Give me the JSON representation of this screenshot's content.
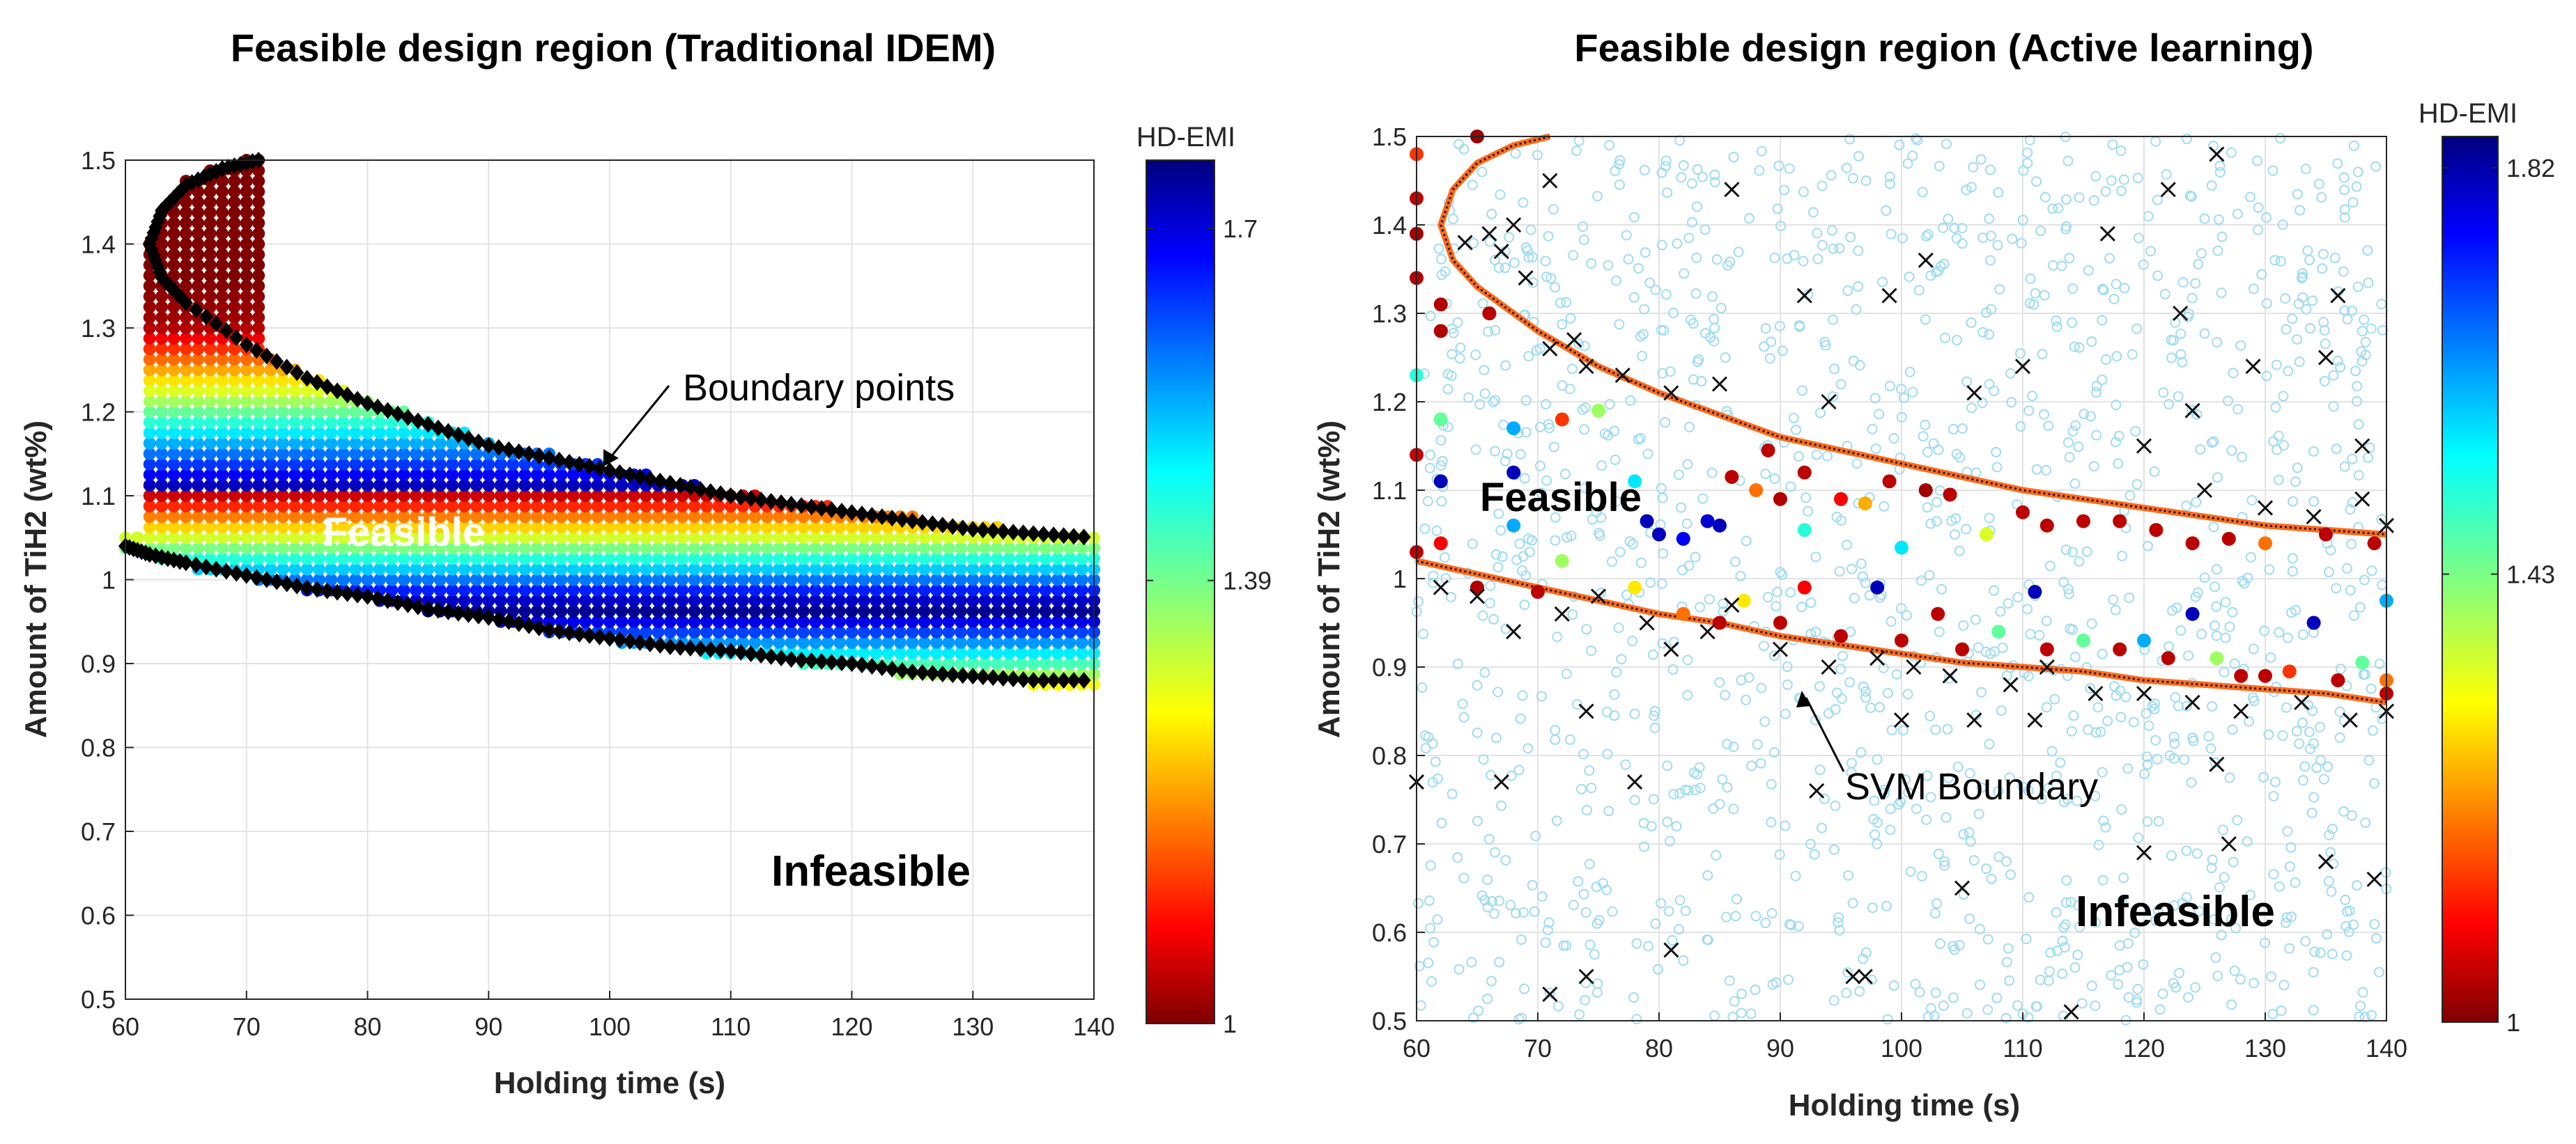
{
  "chart_data": [
    {
      "type": "scatter",
      "title": "Feasible design region (Traditional IDEM)",
      "xlabel": "Holding time (s)",
      "ylabel": "Amount of TiH2 (wt%)",
      "xlim": [
        60,
        140
      ],
      "ylim": [
        0.5,
        1.5
      ],
      "xticks": [
        "60",
        "70",
        "80",
        "90",
        "100",
        "110",
        "120",
        "130",
        "140"
      ],
      "yticks": [
        "0.5",
        "0.6",
        "0.7",
        "0.8",
        "0.9",
        "1",
        "1.1",
        "1.2",
        "1.3",
        "1.4",
        "1.5"
      ],
      "grid": true,
      "colorbar": {
        "label": "HD-EMI",
        "min": 1,
        "max": 1.76,
        "ticks": [
          "1",
          "1.39",
          "1.7"
        ],
        "tick_values": [
          1,
          1.39,
          1.7
        ],
        "colormap": "jet-reversed"
      },
      "upper_boundary": [
        [
          71,
          1.5
        ],
        [
          68,
          1.49
        ],
        [
          65,
          1.47
        ],
        [
          63,
          1.44
        ],
        [
          62,
          1.4
        ],
        [
          63,
          1.36
        ],
        [
          65,
          1.33
        ],
        [
          70,
          1.28
        ],
        [
          75,
          1.24
        ],
        [
          80,
          1.21
        ],
        [
          85,
          1.185
        ],
        [
          90,
          1.16
        ],
        [
          95,
          1.145
        ],
        [
          100,
          1.13
        ],
        [
          105,
          1.115
        ],
        [
          110,
          1.1
        ],
        [
          115,
          1.09
        ],
        [
          120,
          1.08
        ],
        [
          125,
          1.07
        ],
        [
          130,
          1.06
        ],
        [
          135,
          1.055
        ],
        [
          140,
          1.05
        ]
      ],
      "lower_boundary": [
        [
          60,
          1.04
        ],
        [
          62,
          1.03
        ],
        [
          65,
          1.02
        ],
        [
          70,
          1.005
        ],
        [
          75,
          0.99
        ],
        [
          80,
          0.98
        ],
        [
          85,
          0.965
        ],
        [
          90,
          0.955
        ],
        [
          95,
          0.94
        ],
        [
          100,
          0.93
        ],
        [
          105,
          0.92
        ],
        [
          110,
          0.915
        ],
        [
          115,
          0.905
        ],
        [
          120,
          0.9
        ],
        [
          125,
          0.89
        ],
        [
          130,
          0.885
        ],
        [
          135,
          0.88
        ],
        [
          140,
          0.88
        ]
      ],
      "series": [
        {
          "name": "Feasible points (colored by HD-EMI)"
        },
        {
          "name": "Boundary points"
        }
      ],
      "annotations": [
        {
          "text": "Boundary points",
          "x": 106,
          "y": 1.23,
          "arrow_to": [
            100,
            1.13
          ]
        },
        {
          "text": "Feasible",
          "x": 84,
          "y": 1.04
        },
        {
          "text": "Infeasible",
          "x": 110,
          "y": 0.66
        }
      ]
    },
    {
      "type": "scatter",
      "title": "Feasible design region (Active learning)",
      "xlabel": "Holding time (s)",
      "ylabel": "Amount of TiH2 (wt%)",
      "xlim": [
        60,
        140
      ],
      "ylim": [
        0.5,
        1.5
      ],
      "xticks": [
        "60",
        "70",
        "80",
        "90",
        "100",
        "110",
        "120",
        "130",
        "140"
      ],
      "yticks": [
        "0.5",
        "0.6",
        "0.7",
        "0.8",
        "0.9",
        "1",
        "1.1",
        "1.2",
        "1.3",
        "1.4",
        "1.5"
      ],
      "grid": true,
      "colorbar": {
        "label": "HD-EMI",
        "min": 1,
        "max": 1.85,
        "ticks": [
          "1",
          "1.43",
          "1.82"
        ],
        "tick_values": [
          1,
          1.43,
          1.82
        ],
        "colormap": "jet-reversed"
      },
      "svm_upper": [
        [
          71,
          1.5
        ],
        [
          68,
          1.49
        ],
        [
          65,
          1.47
        ],
        [
          63,
          1.44
        ],
        [
          62,
          1.4
        ],
        [
          63,
          1.36
        ],
        [
          65,
          1.33
        ],
        [
          70,
          1.28
        ],
        [
          75,
          1.24
        ],
        [
          80,
          1.21
        ],
        [
          85,
          1.185
        ],
        [
          90,
          1.16
        ],
        [
          95,
          1.145
        ],
        [
          100,
          1.13
        ],
        [
          105,
          1.115
        ],
        [
          110,
          1.1
        ],
        [
          115,
          1.09
        ],
        [
          120,
          1.08
        ],
        [
          125,
          1.07
        ],
        [
          130,
          1.06
        ],
        [
          135,
          1.055
        ],
        [
          140,
          1.05
        ]
      ],
      "svm_lower": [
        [
          60,
          1.02
        ],
        [
          65,
          1.005
        ],
        [
          70,
          0.99
        ],
        [
          75,
          0.975
        ],
        [
          80,
          0.96
        ],
        [
          85,
          0.95
        ],
        [
          90,
          0.935
        ],
        [
          95,
          0.925
        ],
        [
          100,
          0.915
        ],
        [
          105,
          0.905
        ],
        [
          110,
          0.9
        ],
        [
          115,
          0.895
        ],
        [
          120,
          0.885
        ],
        [
          125,
          0.88
        ],
        [
          130,
          0.875
        ],
        [
          135,
          0.87
        ],
        [
          140,
          0.86
        ]
      ],
      "sampled_points": [
        [
          60,
          1.03,
          1.05
        ],
        [
          60,
          1.14,
          1.06
        ],
        [
          60,
          1.23,
          1.5
        ],
        [
          60,
          1.34,
          1.04
        ],
        [
          60,
          1.39,
          1.03
        ],
        [
          60,
          1.43,
          1.05
        ],
        [
          60,
          1.48,
          1.15
        ],
        [
          62,
          1.28,
          1.04
        ],
        [
          62,
          1.31,
          1.04
        ],
        [
          62,
          1.18,
          1.45
        ],
        [
          62,
          1.11,
          1.8
        ],
        [
          62,
          1.04,
          1.1
        ],
        [
          65,
          1.5,
          1.02
        ],
        [
          66,
          1.3,
          1.05
        ],
        [
          68,
          1.17,
          1.6
        ],
        [
          68,
          1.12,
          1.8
        ],
        [
          68,
          1.06,
          1.6
        ],
        [
          72,
          1.18,
          1.15
        ],
        [
          75,
          1.19,
          1.4
        ],
        [
          78,
          1.11,
          1.55
        ],
        [
          79,
          1.065,
          1.8
        ],
        [
          80,
          1.05,
          1.8
        ],
        [
          82,
          1.045,
          1.75
        ],
        [
          84,
          1.065,
          1.78
        ],
        [
          85,
          1.06,
          1.8
        ],
        [
          86,
          1.115,
          1.05
        ],
        [
          88,
          1.1,
          1.2
        ],
        [
          89,
          1.145,
          1.05
        ],
        [
          90,
          1.09,
          1.04
        ],
        [
          92,
          1.055,
          1.5
        ],
        [
          92,
          1.12,
          1.05
        ],
        [
          95,
          1.09,
          1.1
        ],
        [
          97,
          1.085,
          1.25
        ],
        [
          99,
          1.11,
          1.05
        ],
        [
          100,
          1.035,
          1.55
        ],
        [
          102,
          1.1,
          1.03
        ],
        [
          104,
          1.095,
          1.05
        ],
        [
          107,
          1.05,
          1.35
        ],
        [
          110,
          1.075,
          1.05
        ],
        [
          112,
          1.06,
          1.05
        ],
        [
          115,
          1.065,
          1.05
        ],
        [
          118,
          1.065,
          1.05
        ],
        [
          121,
          1.055,
          1.05
        ],
        [
          124,
          1.04,
          1.05
        ],
        [
          127,
          1.045,
          1.05
        ],
        [
          130,
          1.04,
          1.2
        ],
        [
          135,
          1.05,
          1.05
        ],
        [
          139,
          1.04,
          1.05
        ],
        [
          65,
          0.99,
          1.04
        ],
        [
          70,
          0.985,
          1.05
        ],
        [
          72,
          1.02,
          1.4
        ],
        [
          78,
          0.99,
          1.3
        ],
        [
          82,
          0.96,
          1.2
        ],
        [
          85,
          0.95,
          1.05
        ],
        [
          87,
          0.975,
          1.3
        ],
        [
          90,
          0.95,
          1.05
        ],
        [
          92,
          0.99,
          1.1
        ],
        [
          95,
          0.935,
          1.05
        ],
        [
          98,
          0.99,
          1.8
        ],
        [
          100,
          0.93,
          1.05
        ],
        [
          103,
          0.96,
          1.05
        ],
        [
          105,
          0.92,
          1.05
        ],
        [
          108,
          0.94,
          1.45
        ],
        [
          111,
          0.985,
          1.8
        ],
        [
          112,
          0.92,
          1.05
        ],
        [
          115,
          0.93,
          1.45
        ],
        [
          118,
          0.92,
          1.05
        ],
        [
          120,
          0.93,
          1.6
        ],
        [
          122,
          0.91,
          1.05
        ],
        [
          124,
          0.96,
          1.8
        ],
        [
          126,
          0.91,
          1.4
        ],
        [
          128,
          0.89,
          1.05
        ],
        [
          130,
          0.89,
          1.05
        ],
        [
          132,
          0.895,
          1.15
        ],
        [
          134,
          0.95,
          1.8
        ],
        [
          136,
          0.885,
          1.05
        ],
        [
          138,
          0.905,
          1.45
        ],
        [
          140,
          0.975,
          1.6
        ],
        [
          140,
          0.885,
          1.2
        ],
        [
          140,
          0.87,
          1.05
        ]
      ],
      "misclassified_x": [
        [
          71,
          1.45
        ],
        [
          66,
          1.39
        ],
        [
          64,
          1.38
        ],
        [
          68,
          1.4
        ],
        [
          67,
          1.37
        ],
        [
          69,
          1.34
        ],
        [
          71,
          1.26
        ],
        [
          73,
          1.27
        ],
        [
          74,
          1.24
        ],
        [
          77,
          1.23
        ],
        [
          81,
          1.21
        ],
        [
          85,
          1.22
        ],
        [
          86,
          1.44
        ],
        [
          92,
          1.32
        ],
        [
          94,
          1.2
        ],
        [
          99,
          1.32
        ],
        [
          102,
          1.36
        ],
        [
          106,
          1.21
        ],
        [
          110,
          1.24
        ],
        [
          117,
          1.39
        ],
        [
          122,
          1.44
        ],
        [
          123,
          1.3
        ],
        [
          126,
          1.48
        ],
        [
          129,
          1.24
        ],
        [
          135,
          1.25
        ],
        [
          136,
          1.32
        ],
        [
          138,
          1.15
        ],
        [
          124,
          1.19
        ],
        [
          120,
          1.15
        ],
        [
          125,
          1.1
        ],
        [
          130,
          1.08
        ],
        [
          134,
          1.07
        ],
        [
          138,
          1.09
        ],
        [
          140,
          1.06
        ],
        [
          62,
          0.99
        ],
        [
          65,
          0.98
        ],
        [
          68,
          0.94
        ],
        [
          72,
          0.96
        ],
        [
          75,
          0.98
        ],
        [
          79,
          0.95
        ],
        [
          81,
          0.92
        ],
        [
          84,
          0.94
        ],
        [
          86,
          0.97
        ],
        [
          90,
          0.92
        ],
        [
          94,
          0.9
        ],
        [
          98,
          0.91
        ],
        [
          101,
          0.9
        ],
        [
          104,
          0.89
        ],
        [
          109,
          0.88
        ],
        [
          112,
          0.9
        ],
        [
          116,
          0.87
        ],
        [
          120,
          0.87
        ],
        [
          124,
          0.86
        ],
        [
          128,
          0.85
        ],
        [
          133,
          0.86
        ],
        [
          137,
          0.84
        ],
        [
          140,
          0.85
        ],
        [
          60,
          0.77
        ],
        [
          67,
          0.77
        ],
        [
          74,
          0.85
        ],
        [
          78,
          0.77
        ],
        [
          81,
          0.58
        ],
        [
          93,
          0.76
        ],
        [
          97,
          0.55
        ],
        [
          100,
          0.84
        ],
        [
          105,
          0.65
        ],
        [
          106,
          0.84
        ],
        [
          111,
          0.84
        ],
        [
          114,
          0.51
        ],
        [
          120,
          0.69
        ],
        [
          126,
          0.79
        ],
        [
          127,
          0.7
        ],
        [
          135,
          0.68
        ],
        [
          139,
          0.66
        ],
        [
          71,
          0.53
        ],
        [
          74,
          0.55
        ],
        [
          96,
          0.55
        ]
      ],
      "annotations": [
        {
          "text": "SVM Boundary",
          "x": 118,
          "y": 0.77,
          "arrow_to": [
            96,
            0.92
          ]
        },
        {
          "text": "Feasible",
          "x": 78,
          "y": 1.1
        },
        {
          "text": "Infeasible",
          "x": 126,
          "y": 0.61
        }
      ]
    }
  ]
}
